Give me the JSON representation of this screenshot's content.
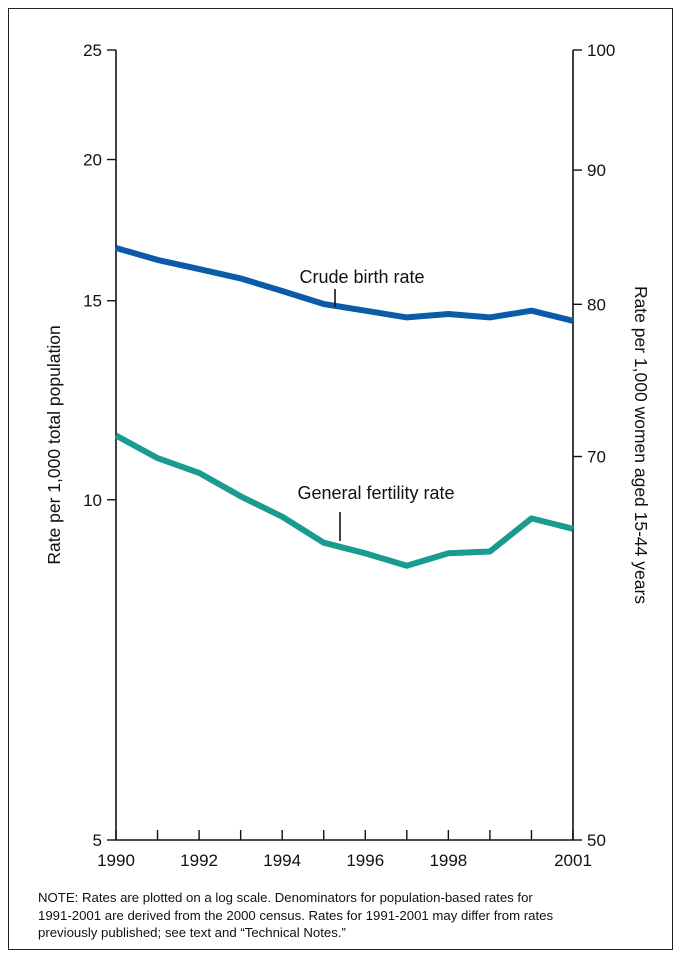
{
  "chart_data": {
    "type": "line",
    "scale": "log",
    "x": [
      1990,
      1991,
      1992,
      1993,
      1994,
      1995,
      1996,
      1997,
      1998,
      1999,
      2000,
      2001
    ],
    "xlim": [
      1990,
      2001
    ],
    "x_tick_labels": [
      "1990",
      "1992",
      "1994",
      "1996",
      "1998",
      "2001"
    ],
    "x_tick_values": [
      1990,
      1992,
      1994,
      1996,
      1998,
      2001
    ],
    "left_axis": {
      "label": "Rate per 1,000 total population",
      "lim": [
        5,
        25
      ],
      "ticks": [
        5,
        10,
        15,
        20,
        25
      ],
      "tick_labels": [
        "5",
        "10",
        "15",
        "20",
        "25"
      ]
    },
    "right_axis": {
      "label": "Rate per 1,000 women aged 15-44 years",
      "lim": [
        50,
        100
      ],
      "ticks": [
        50,
        70,
        80,
        90,
        100
      ],
      "tick_labels": [
        "50",
        "70",
        "80",
        "90",
        "100"
      ]
    },
    "series": [
      {
        "name": "Crude birth rate",
        "axis": "left",
        "color": "#0b5ba9",
        "values": [
          16.7,
          16.3,
          16.0,
          15.7,
          15.3,
          14.9,
          14.7,
          14.5,
          14.6,
          14.5,
          14.7,
          14.4
        ]
      },
      {
        "name": "General fertility rate",
        "axis": "right",
        "color": "#1a9b8f",
        "values": [
          71.3,
          69.9,
          69.0,
          67.6,
          66.4,
          64.9,
          64.3,
          63.6,
          64.3,
          64.4,
          66.3,
          65.7
        ]
      }
    ]
  },
  "note": {
    "lines": [
      "NOTE: Rates are plotted on a log scale.  Denominators for population-based rates for",
      "1991-2001 are derived from the 2000 census. Rates for 1991-2001 may differ from rates",
      "previously published; see text and “Technical Notes.”"
    ]
  }
}
